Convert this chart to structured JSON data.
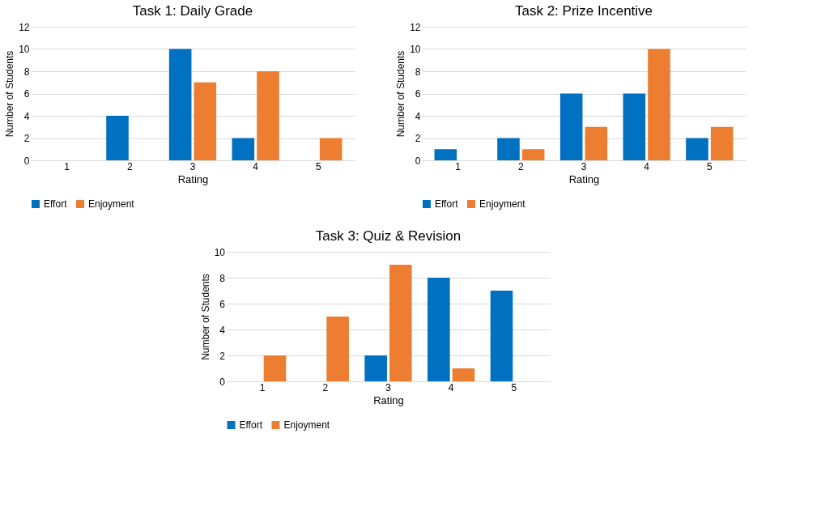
{
  "chart_data": [
    {
      "type": "bar",
      "title": "Task 1: Daily Grade",
      "xlabel": "Rating",
      "ylabel": "Number of Students",
      "categories": [
        "1",
        "2",
        "3",
        "4",
        "5"
      ],
      "series": [
        {
          "name": "Effort",
          "color": "#0070c0",
          "values": [
            0,
            4,
            10,
            2,
            0
          ]
        },
        {
          "name": "Enjoyment",
          "color": "#ed7d31",
          "values": [
            0,
            0,
            7,
            8,
            2
          ]
        }
      ],
      "ylim": [
        0,
        12
      ],
      "yticks": [
        0,
        2,
        4,
        6,
        8,
        10,
        12
      ],
      "grid": "y",
      "legend": "bottom"
    },
    {
      "type": "bar",
      "title": "Task 2: Prize Incentive",
      "xlabel": "Rating",
      "ylabel": "Number of Students",
      "categories": [
        "1",
        "2",
        "3",
        "4",
        "5"
      ],
      "series": [
        {
          "name": "Effort",
          "color": "#0070c0",
          "values": [
            1,
            2,
            6,
            6,
            2
          ]
        },
        {
          "name": "Enjoyment",
          "color": "#ed7d31",
          "values": [
            0,
            1,
            3,
            10,
            3
          ]
        }
      ],
      "ylim": [
        0,
        12
      ],
      "yticks": [
        0,
        2,
        4,
        6,
        8,
        10,
        12
      ],
      "grid": "y",
      "legend": "bottom"
    },
    {
      "type": "bar",
      "title": "Task 3: Quiz & Revision",
      "xlabel": "Rating",
      "ylabel": "Number of Students",
      "categories": [
        "1",
        "2",
        "3",
        "4",
        "5"
      ],
      "series": [
        {
          "name": "Effort",
          "color": "#0070c0",
          "values": [
            0,
            0,
            2,
            8,
            7
          ]
        },
        {
          "name": "Enjoyment",
          "color": "#ed7d31",
          "values": [
            2,
            5,
            9,
            1,
            0
          ]
        }
      ],
      "ylim": [
        0,
        10
      ],
      "yticks": [
        0,
        2,
        4,
        6,
        8,
        10
      ],
      "grid": "y",
      "legend": "bottom"
    }
  ]
}
